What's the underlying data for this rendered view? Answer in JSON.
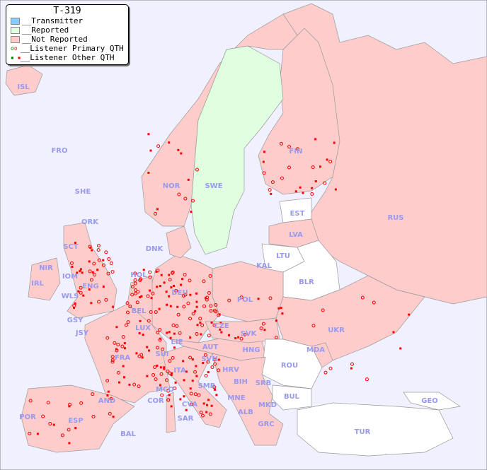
{
  "title": "T-319",
  "legend": [
    {
      "label": "__Transmitter",
      "color": "#88ccff"
    },
    {
      "label": "__Reported",
      "color": "#e0ffe0"
    },
    {
      "label": "__Not Reported",
      "color": "#ffcccc"
    },
    {
      "label": "__Listener Primary QTH",
      "symbol": "open-circle"
    },
    {
      "label": "__Listener Other QTH",
      "symbol": "filled-square"
    }
  ],
  "colors": {
    "sea": "#f0f0ff",
    "not_reported": "#ffcccc",
    "reported": "#e0ffe0",
    "no_data": "#ffffff",
    "listener": "#ff0000",
    "label": "#9999ee"
  },
  "labels": {
    "ISL": "ISL",
    "FRO": "FRO",
    "SHE": "SHE",
    "ORK": "ORK",
    "NOR": "NOR",
    "SWE": "SWE",
    "FIN": "FIN",
    "RUS": "RUS",
    "EST": "EST",
    "LVA": "LVA",
    "LTU": "LTU",
    "DNK": "DNK",
    "HOL": "HOL",
    "KAL": "KAL",
    "BLR": "BLR",
    "IRL": "IRL",
    "NIR": "NIR",
    "SCT": "SCT",
    "IOM": "IOM",
    "WLS": "WLS",
    "ENG": "ENG",
    "DEU": "DEU",
    "POL": "POL",
    "BEL": "BEL",
    "LUX": "LUX",
    "GSY": "GSY",
    "JSY": "JSY",
    "CZE": "CZE",
    "SVK": "SVK",
    "UKR": "UKR",
    "FRA": "FRA",
    "SUI": "SUI",
    "LIE": "LIE",
    "AUT": "AUT",
    "HNG": "HNG",
    "MDA": "MDA",
    "SVN": "SVN",
    "HRV": "HRV",
    "ROU": "ROU",
    "ITA": "ITA",
    "BIH": "BIH",
    "SRB": "SRB",
    "MCO": "MCO",
    "SMR": "SMR",
    "COR": "COR",
    "AND": "AND",
    "MNE": "MNE",
    "BUL": "BUL",
    "GEO": "GEO",
    "POR": "POR",
    "ESP": "ESP",
    "CVA": "CVA",
    "ALB": "ALB",
    "MKD": "MKD",
    "SAR": "SAR",
    "BAL": "BAL",
    "GRC": "GRC",
    "TUR": "TUR"
  }
}
